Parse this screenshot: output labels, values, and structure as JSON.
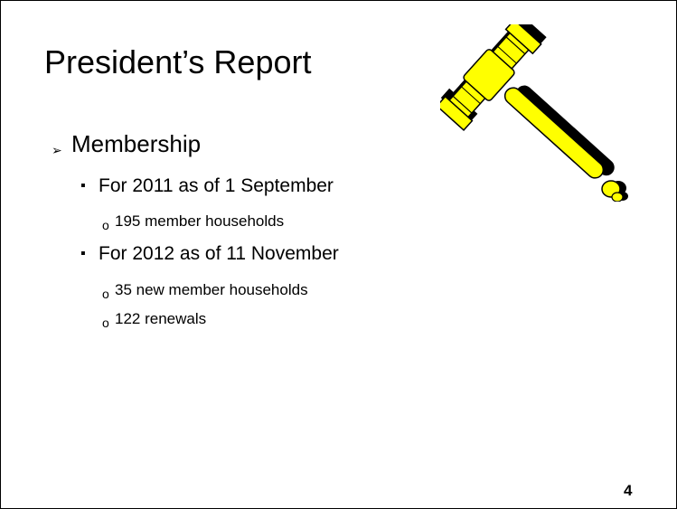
{
  "slide": {
    "title": "President’s Report",
    "page_number": "4",
    "level1": {
      "marker": "➢",
      "text": "Membership"
    },
    "level2": [
      {
        "marker": "▪",
        "text": "For 2011 as of 1 September",
        "items": [
          {
            "marker": "o",
            "text": "195 member households"
          }
        ]
      },
      {
        "marker": "▪",
        "text": "For 2012 as of 11 November",
        "items": [
          {
            "marker": "o",
            "text": "35 new member households"
          },
          {
            "marker": "o",
            "text": "122 renewals"
          }
        ]
      }
    ]
  },
  "illustration": {
    "name": "gavel-icon",
    "fill_color": "#ffff00",
    "shadow_color": "#000000"
  }
}
